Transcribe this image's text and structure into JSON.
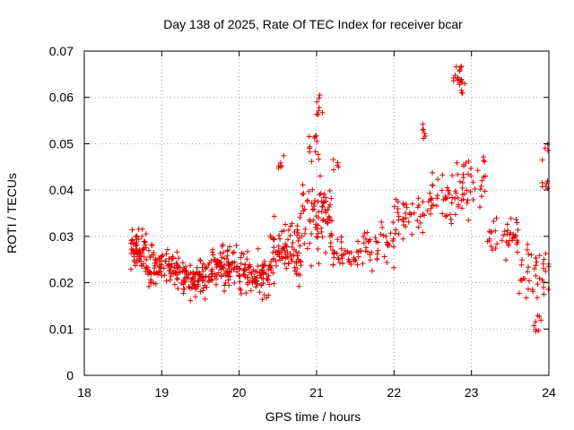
{
  "chart_data": {
    "type": "scatter",
    "title": "Day 138 of 2025, Rate Of TEC Index for receiver bcar",
    "xlabel": "GPS time / hours",
    "ylabel": "ROTI / TECUs",
    "xlim": [
      18,
      24
    ],
    "ylim": [
      0,
      0.07
    ],
    "x_ticks": [
      "18",
      "19",
      "20",
      "21",
      "22",
      "23",
      "24"
    ],
    "y_ticks": [
      "0",
      "0.01",
      "0.02",
      "0.03",
      "0.04",
      "0.05",
      "0.06",
      "0.07"
    ],
    "grid": true,
    "marker": "plus",
    "color": "#e00000",
    "segments": [
      {
        "x0": 18.6,
        "x1": 18.8,
        "y_center": 0.027,
        "spread": 0.007,
        "count": 60
      },
      {
        "x0": 18.8,
        "x1": 19.2,
        "y_center": 0.023,
        "spread": 0.006,
        "count": 90
      },
      {
        "x0": 19.2,
        "x1": 19.6,
        "y_center": 0.021,
        "spread": 0.006,
        "count": 90
      },
      {
        "x0": 19.6,
        "x1": 20.0,
        "y_center": 0.023,
        "spread": 0.006,
        "count": 90
      },
      {
        "x0": 20.0,
        "x1": 20.4,
        "y_center": 0.022,
        "spread": 0.007,
        "count": 90
      },
      {
        "x0": 20.4,
        "x1": 20.8,
        "y_center": 0.027,
        "spread": 0.009,
        "count": 90
      },
      {
        "x0": 20.8,
        "x1": 21.2,
        "y_center": 0.034,
        "spread": 0.012,
        "count": 80
      },
      {
        "x0": 21.2,
        "x1": 21.6,
        "y_center": 0.025,
        "spread": 0.006,
        "count": 40
      },
      {
        "x0": 21.6,
        "x1": 22.0,
        "y_center": 0.028,
        "spread": 0.006,
        "count": 40
      },
      {
        "x0": 22.0,
        "x1": 22.4,
        "y_center": 0.034,
        "spread": 0.006,
        "count": 40
      },
      {
        "x0": 22.4,
        "x1": 22.8,
        "y_center": 0.038,
        "spread": 0.009,
        "count": 40
      },
      {
        "x0": 22.8,
        "x1": 23.2,
        "y_center": 0.04,
        "spread": 0.009,
        "count": 40
      },
      {
        "x0": 23.2,
        "x1": 23.6,
        "y_center": 0.03,
        "spread": 0.007,
        "count": 40
      },
      {
        "x0": 23.6,
        "x1": 24.0,
        "y_center": 0.022,
        "spread": 0.009,
        "count": 40
      }
    ],
    "clusters": [
      {
        "x": 20.55,
        "y": 0.046,
        "dx": 0.05,
        "dy": 0.002,
        "count": 6
      },
      {
        "x": 20.95,
        "y": 0.049,
        "dx": 0.08,
        "dy": 0.003,
        "count": 12
      },
      {
        "x": 21.05,
        "y": 0.058,
        "dx": 0.05,
        "dy": 0.004,
        "count": 8
      },
      {
        "x": 21.25,
        "y": 0.045,
        "dx": 0.04,
        "dy": 0.002,
        "count": 5
      },
      {
        "x": 22.38,
        "y": 0.053,
        "dx": 0.03,
        "dy": 0.002,
        "count": 6
      },
      {
        "x": 22.82,
        "y": 0.065,
        "dx": 0.06,
        "dy": 0.002,
        "count": 14
      },
      {
        "x": 22.88,
        "y": 0.062,
        "dx": 0.04,
        "dy": 0.002,
        "count": 6
      },
      {
        "x": 23.15,
        "y": 0.047,
        "dx": 0.03,
        "dy": 0.001,
        "count": 3
      },
      {
        "x": 23.85,
        "y": 0.011,
        "dx": 0.05,
        "dy": 0.002,
        "count": 8
      },
      {
        "x": 23.95,
        "y": 0.048,
        "dx": 0.04,
        "dy": 0.002,
        "count": 4
      },
      {
        "x": 23.95,
        "y": 0.041,
        "dx": 0.04,
        "dy": 0.001,
        "count": 6
      }
    ]
  }
}
